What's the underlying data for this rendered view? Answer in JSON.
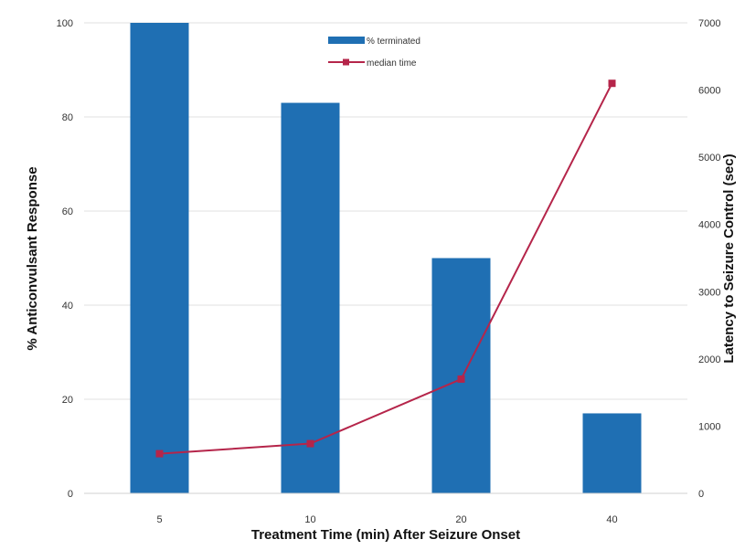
{
  "chart_data": {
    "type": "bar",
    "categories": [
      "5",
      "10",
      "20",
      "40"
    ],
    "xlabel": "Treatment Time (min) After Seizure Onset",
    "ylabel_left": "% Anticonvulsant Response",
    "ylabel_right": "Latency to Seizure Control (sec)",
    "ylim_left": [
      0,
      100
    ],
    "ylim_right": [
      0,
      7000
    ],
    "yticks_left": [
      0,
      20,
      40,
      60,
      80,
      100
    ],
    "yticks_right": [
      0,
      1000,
      2000,
      3000,
      4000,
      5000,
      6000,
      7000
    ],
    "grid": true,
    "legend_position": "top-center",
    "series": [
      {
        "name": "% terminated",
        "type": "bar",
        "axis": "left",
        "color": "#1f6fb3",
        "values": [
          100,
          83,
          50,
          17
        ]
      },
      {
        "name": "median time",
        "type": "line",
        "axis": "right",
        "color": "#b5254a",
        "values": [
          590,
          740,
          1700,
          6100
        ]
      }
    ]
  }
}
